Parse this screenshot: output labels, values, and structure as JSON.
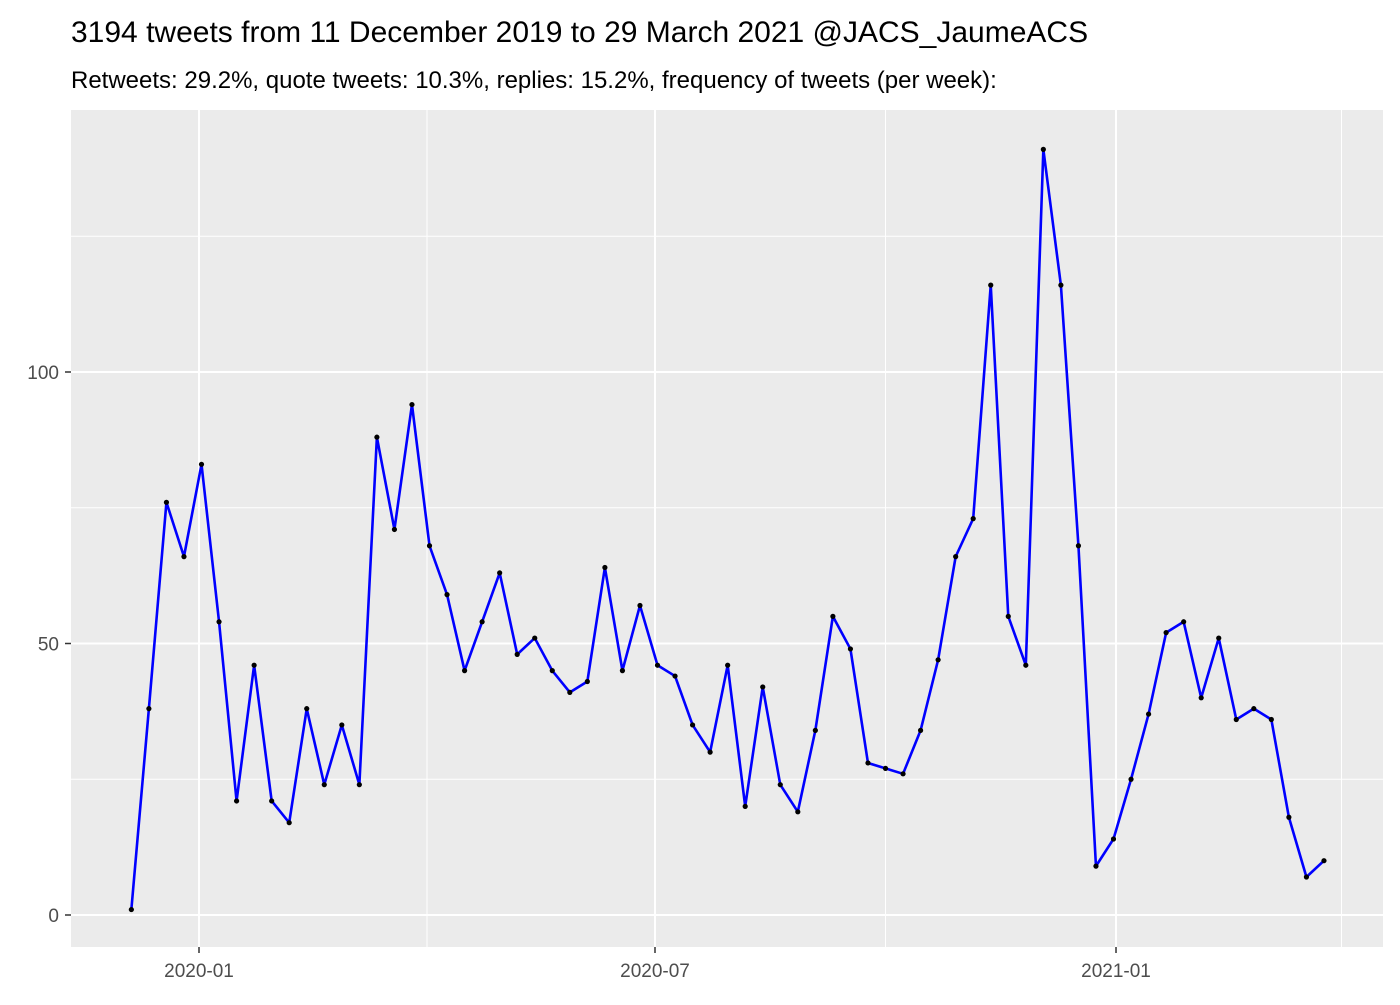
{
  "chart_data": {
    "type": "line",
    "title": "3194 tweets from 11 December 2019 to 29 March 2021 @JACS_JaumeACS",
    "subtitle": "Retweets: 29.2%, quote tweets: 10.3%, replies: 15.2%, frequency of tweets (per week):",
    "xlabel": "",
    "ylabel": "",
    "x_ticks": [
      "2020-01",
      "2020-07",
      "2021-01"
    ],
    "y_ticks": [
      "0",
      "50",
      "100"
    ],
    "grid": true,
    "line_color": "#0000ff",
    "point_color": "#000000",
    "x": [
      "2019-12-05",
      "2019-12-12",
      "2019-12-19",
      "2019-12-26",
      "2020-01-02",
      "2020-01-09",
      "2020-01-16",
      "2020-01-23",
      "2020-01-30",
      "2020-02-06",
      "2020-02-13",
      "2020-02-20",
      "2020-02-27",
      "2020-03-05",
      "2020-03-12",
      "2020-03-19",
      "2020-03-26",
      "2020-04-02",
      "2020-04-09",
      "2020-04-16",
      "2020-04-23",
      "2020-04-30",
      "2020-05-07",
      "2020-05-14",
      "2020-05-21",
      "2020-05-28",
      "2020-06-04",
      "2020-06-11",
      "2020-06-18",
      "2020-06-25",
      "2020-07-02",
      "2020-07-09",
      "2020-07-16",
      "2020-07-23",
      "2020-07-30",
      "2020-08-06",
      "2020-08-13",
      "2020-08-20",
      "2020-08-27",
      "2020-09-03",
      "2020-09-10",
      "2020-09-17",
      "2020-09-24",
      "2020-10-01",
      "2020-10-08",
      "2020-10-15",
      "2020-10-22",
      "2020-10-29",
      "2020-11-05",
      "2020-11-12",
      "2020-11-19",
      "2020-11-26",
      "2020-12-03",
      "2020-12-10",
      "2020-12-17",
      "2020-12-24",
      "2020-12-31",
      "2021-01-07",
      "2021-01-14",
      "2021-01-21",
      "2021-01-28",
      "2021-02-04",
      "2021-02-11",
      "2021-02-18",
      "2021-02-25",
      "2021-03-04",
      "2021-03-11",
      "2021-03-18",
      "2021-03-25"
    ],
    "values": [
      1,
      38,
      76,
      66,
      83,
      54,
      21,
      46,
      21,
      17,
      38,
      24,
      35,
      24,
      88,
      71,
      94,
      68,
      59,
      45,
      54,
      63,
      48,
      51,
      45,
      41,
      43,
      64,
      45,
      57,
      46,
      44,
      35,
      30,
      46,
      20,
      42,
      24,
      19,
      34,
      55,
      49,
      28,
      27,
      26,
      34,
      47,
      66,
      73,
      116,
      55,
      46,
      141,
      116,
      68,
      9,
      14,
      25,
      37,
      52,
      54,
      40,
      51,
      36,
      38,
      36,
      18,
      7,
      10
    ],
    "ylim": [
      -6,
      146
    ]
  }
}
